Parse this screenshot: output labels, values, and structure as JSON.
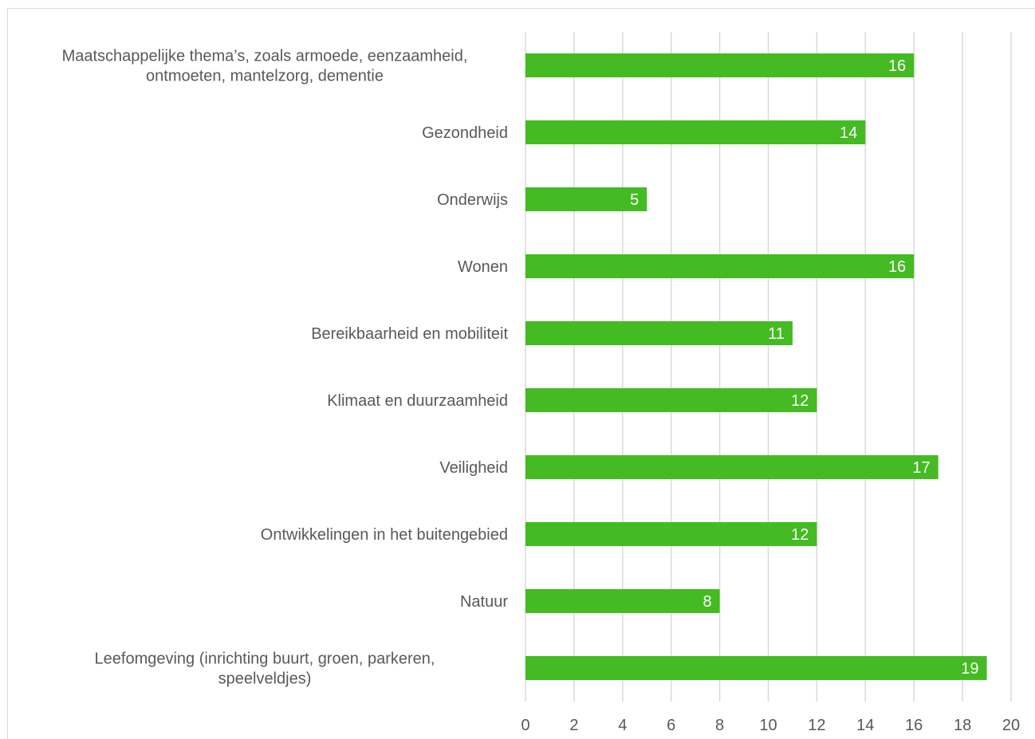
{
  "chart_data": {
    "type": "bar",
    "orientation": "horizontal",
    "title": "",
    "xlabel": "",
    "ylabel": "",
    "categories": [
      [
        "Maatschappelijke thema’s, zoals armoede, eenzaamheid,",
        "ontmoeten, mantelzorg, dementie"
      ],
      [
        "Gezondheid"
      ],
      [
        "Onderwijs"
      ],
      [
        "Wonen"
      ],
      [
        "Bereikbaarheid en mobiliteit"
      ],
      [
        "Klimaat en duurzaamheid"
      ],
      [
        "Veiligheid"
      ],
      [
        "Ontwikkelingen in het buitengebied"
      ],
      [
        "Natuur"
      ],
      [
        "Leefomgeving (inrichting buurt, groen, parkeren,",
        "speelveldjes)"
      ]
    ],
    "values": [
      16,
      14,
      5,
      16,
      11,
      12,
      17,
      12,
      8,
      19
    ],
    "xlim": [
      0,
      20
    ],
    "xticks": [
      0,
      2,
      4,
      6,
      8,
      10,
      12,
      14,
      16,
      18,
      20
    ],
    "grid": true,
    "bar_color": "#44bb22",
    "data_labels": true
  }
}
